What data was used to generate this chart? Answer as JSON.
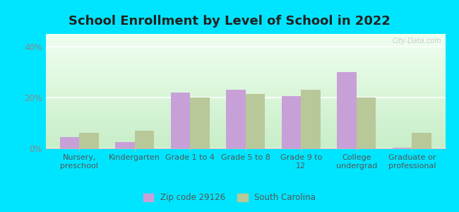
{
  "title": "School Enrollment by Level of School in 2022",
  "categories": [
    "Nursery,\npreschool",
    "Kindergarten",
    "Grade 1 to 4",
    "Grade 5 to 8",
    "Grade 9 to\n12",
    "College\nundergrad",
    "Graduate or\nprofessional"
  ],
  "zip_values": [
    4.5,
    2.5,
    22.0,
    23.0,
    20.5,
    30.0,
    0.3
  ],
  "sc_values": [
    6.0,
    7.0,
    20.0,
    21.5,
    23.0,
    20.0,
    6.0
  ],
  "zip_color": "#c8a0d8",
  "sc_color": "#b8c898",
  "background_color": "#00e5ff",
  "ylim": [
    0,
    45
  ],
  "yticks": [
    0,
    20,
    40
  ],
  "ytick_labels": [
    "0%",
    "20%",
    "40%"
  ],
  "legend_zip_label": "Zip code 29126",
  "legend_sc_label": "South Carolina",
  "watermark": "City-Data.com",
  "title_fontsize": 13,
  "axis_fontsize": 8,
  "tick_fontsize": 8.5,
  "bar_width": 0.35
}
